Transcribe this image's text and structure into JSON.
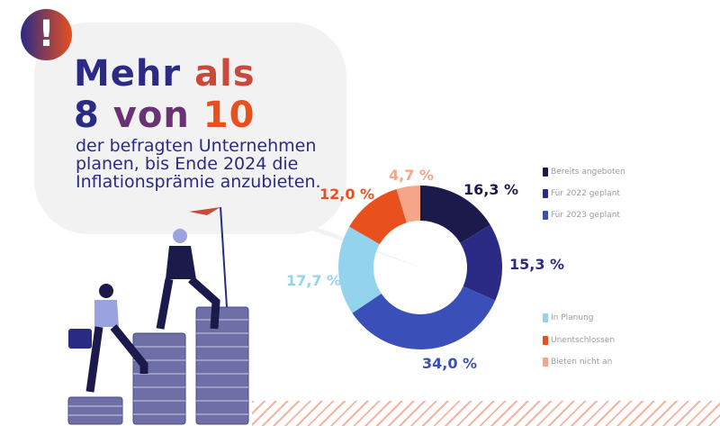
{
  "headline": {
    "line1_a": "Mehr",
    "line1_b": "als",
    "line2_a": "8",
    "line2_b": "von",
    "line2_c": "10",
    "icon": "exclamation-icon"
  },
  "subtitle": "der befragten Unternehmen planen, bis Ende 2024 die Inflationsprämie anzubieten.",
  "chart_data": {
    "type": "pie",
    "donut": true,
    "categories": [
      "Bereits angeboten",
      "Für 2022 geplant",
      "Für 2023 geplant",
      "In Planung",
      "Unentschlossen",
      "Bieten nicht an"
    ],
    "values": [
      16.3,
      15.3,
      34.0,
      17.7,
      12.0,
      4.7
    ],
    "labels": [
      "16,3 %",
      "15,3 %",
      "34,0 %",
      "17,7 %",
      "12,0 %",
      "4,7 %"
    ],
    "colors": [
      "#1c1a4a",
      "#2b2a85",
      "#3a4fb8",
      "#94d3ee",
      "#e8501e",
      "#f4a58a"
    ],
    "legend_placement": "right"
  }
}
